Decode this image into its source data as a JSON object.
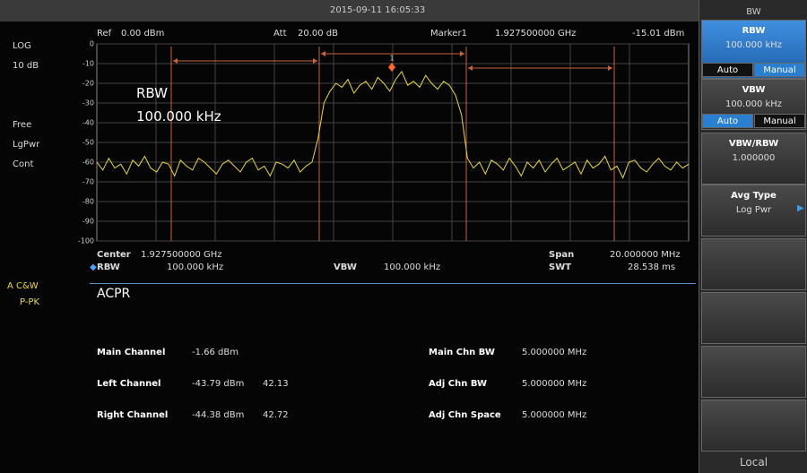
{
  "header": {
    "datetime": "2015-09-11  16:05:33"
  },
  "status": {
    "scale": "LOG",
    "div": "10 dB",
    "trigger": "Free",
    "detector": "LgPwr",
    "sweep": "Cont",
    "trace_mode": "A C&W",
    "trace_type": "P-PK"
  },
  "plot": {
    "ref_label": "Ref",
    "ref": "0.00 dBm",
    "att_label": "Att",
    "att": "20.00 dB",
    "marker_label": "Marker1",
    "marker_freq": "1.927500000 GHz",
    "marker_amp": "-15.01 dBm",
    "marker_num": "1",
    "overlay_title": "RBW",
    "overlay_value": "100.000 kHz",
    "ylim": [
      -100,
      0
    ],
    "yticks": [
      0,
      -10,
      -20,
      -30,
      -40,
      -50,
      -60,
      -70,
      -80,
      -90,
      -100
    ],
    "grid": true,
    "trace_color": "#e6d84a",
    "trace": [
      -60,
      -64,
      -58,
      -63,
      -61,
      -66,
      -59,
      -62,
      -57,
      -63,
      -65,
      -60,
      -61,
      -67,
      -59,
      -62,
      -64,
      -58,
      -60,
      -63,
      -66,
      -61,
      -59,
      -62,
      -65,
      -60,
      -58,
      -64,
      -62,
      -67,
      -60,
      -61,
      -63,
      -59,
      -65,
      -62,
      -60,
      -48,
      -30,
      -24,
      -20,
      -22,
      -18,
      -25,
      -21,
      -19,
      -23,
      -17,
      -20,
      -24,
      -18,
      -14,
      -21,
      -19,
      -22,
      -16,
      -20,
      -23,
      -19,
      -21,
      -26,
      -36,
      -58,
      -63,
      -60,
      -66,
      -59,
      -61,
      -64,
      -58,
      -62,
      -67,
      -60,
      -63,
      -59,
      -65,
      -61,
      -58,
      -64,
      -62,
      -60,
      -66,
      -59,
      -63,
      -61,
      -57,
      -64,
      -62,
      -68,
      -60,
      -59,
      -63,
      -65,
      -61,
      -58,
      -62,
      -64,
      -60,
      -63,
      -61
    ]
  },
  "footer": {
    "center_label": "Center",
    "center": "1.927500000 GHz",
    "span_label": "Span",
    "span": "20.000000 MHz",
    "rbw_label": "RBW",
    "rbw": "100.000 kHz",
    "vbw_label": "VBW",
    "vbw": "100.000 kHz",
    "swt_label": "SWT",
    "swt": "28.538 ms"
  },
  "acpr": {
    "title": "ACPR",
    "measurements": [
      {
        "label": "Main Channel",
        "power": "-1.66 dBm"
      },
      {
        "label": "Left Channel",
        "power": "-43.79 dBm",
        "ratio": "42.13"
      },
      {
        "label": "Right Channel",
        "power": "-44.38 dBm",
        "ratio": "42.72"
      }
    ],
    "settings": [
      {
        "label": "Main Chn BW",
        "value": "5.000000 MHz"
      },
      {
        "label": "Adj Chn BW",
        "value": "5.000000 MHz"
      },
      {
        "label": "Adj Chn Space",
        "value": "5.000000 MHz"
      }
    ]
  },
  "menu": {
    "title": "BW",
    "keys": [
      {
        "label": "RBW",
        "value": "100.000 kHz",
        "options": [
          "Auto",
          "Manual"
        ],
        "selected": 1
      },
      {
        "label": "VBW",
        "value": "100.000 kHz",
        "options": [
          "Auto",
          "Manual"
        ],
        "selected": 0
      },
      {
        "label": "VBW/RBW",
        "value": "1.000000"
      },
      {
        "label": "Avg Type",
        "value": "Log Pwr"
      }
    ],
    "footer": "Local"
  }
}
